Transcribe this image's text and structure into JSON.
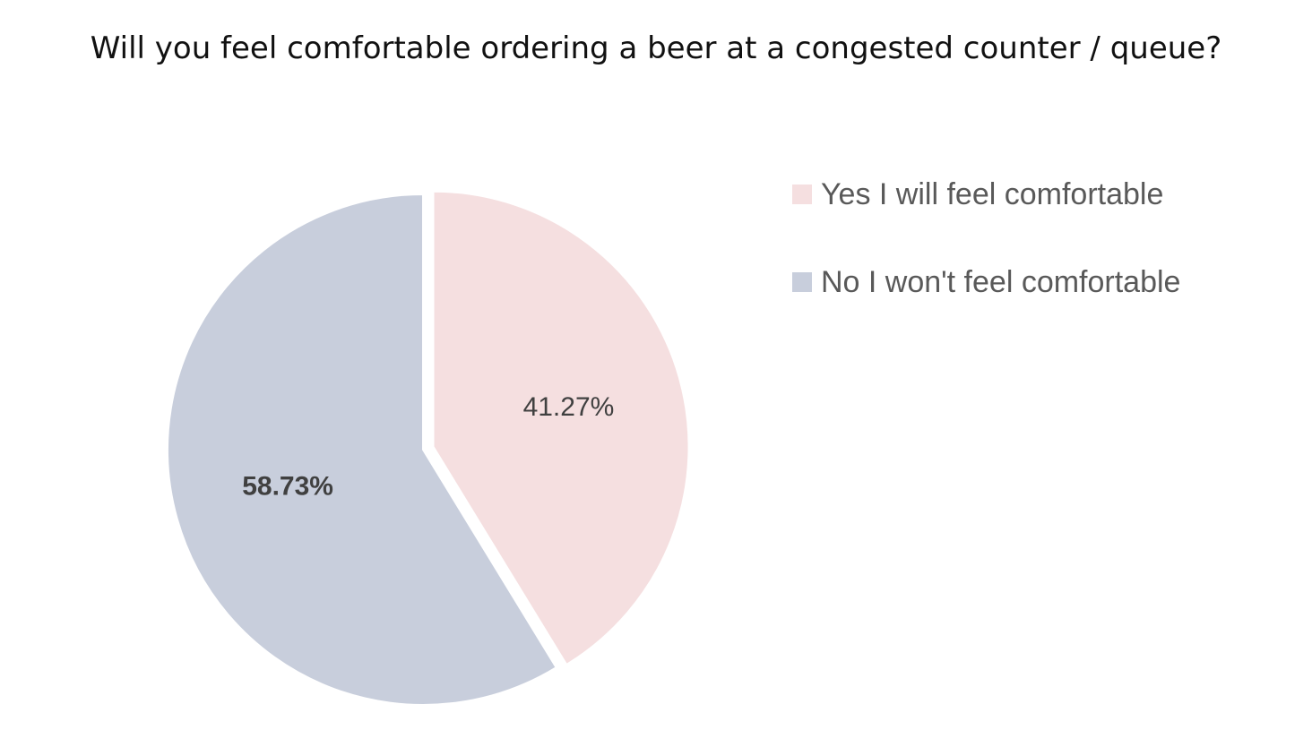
{
  "chart_data": {
    "type": "pie",
    "title": "Will you feel comfortable ordering a beer at a congested counter / queue?",
    "slices": [
      {
        "name": "Yes I will feel comfortable",
        "value": 41.27,
        "label": "41.27%",
        "color": "#f5dfe0",
        "exploded": true,
        "label_bold": false
      },
      {
        "name": "No I won't feel comfortable",
        "value": 58.73,
        "label": "58.73%",
        "color": "#c8cedc",
        "exploded": false,
        "label_bold": true
      }
    ],
    "legend_position": "right"
  }
}
